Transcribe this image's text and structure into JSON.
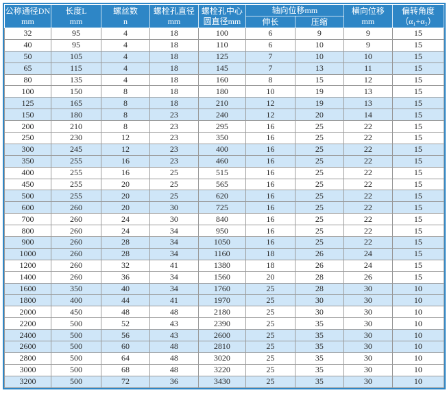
{
  "table": {
    "title_hint": "膨胀节/伸缩接头规格参数表",
    "header": {
      "dn": {
        "l1": "公称通径DN",
        "l2": "mm"
      },
      "length": {
        "l1": "长度L",
        "l2": "mm"
      },
      "screws": {
        "l1": "螺丝数",
        "l2": "n"
      },
      "hole": {
        "l1": "螺栓孔直径",
        "l2": "mm"
      },
      "circle": {
        "l1": "螺栓孔中心",
        "l2": "圆直径mm"
      },
      "axial": {
        "title": "轴向位移mm",
        "elong": "伸长",
        "compress": "压缩"
      },
      "lateral": {
        "l1": "横向位移",
        "l2": "mm"
      },
      "angle": {
        "l1": "偏转角度",
        "l2": "（α₁+α₂）"
      }
    },
    "rows": [
      [
        32,
        95,
        4,
        18,
        100,
        6,
        9,
        9,
        15
      ],
      [
        40,
        95,
        4,
        18,
        110,
        6,
        10,
        9,
        15
      ],
      [
        50,
        105,
        4,
        18,
        125,
        7,
        10,
        10,
        15
      ],
      [
        65,
        115,
        4,
        18,
        145,
        7,
        13,
        11,
        15
      ],
      [
        80,
        135,
        4,
        18,
        160,
        8,
        15,
        12,
        15
      ],
      [
        100,
        150,
        8,
        18,
        180,
        10,
        19,
        13,
        15
      ],
      [
        125,
        165,
        8,
        18,
        210,
        12,
        19,
        13,
        15
      ],
      [
        150,
        180,
        8,
        23,
        240,
        12,
        20,
        14,
        15
      ],
      [
        200,
        210,
        8,
        23,
        295,
        16,
        25,
        22,
        15
      ],
      [
        250,
        230,
        12,
        23,
        350,
        16,
        25,
        22,
        15
      ],
      [
        300,
        245,
        12,
        23,
        400,
        16,
        25,
        22,
        15
      ],
      [
        350,
        255,
        16,
        23,
        460,
        16,
        25,
        22,
        15
      ],
      [
        400,
        255,
        16,
        25,
        515,
        16,
        25,
        22,
        15
      ],
      [
        450,
        255,
        20,
        25,
        565,
        16,
        25,
        22,
        15
      ],
      [
        500,
        255,
        20,
        25,
        620,
        16,
        25,
        22,
        15
      ],
      [
        600,
        260,
        20,
        30,
        725,
        16,
        25,
        22,
        15
      ],
      [
        700,
        260,
        24,
        30,
        840,
        16,
        25,
        22,
        15
      ],
      [
        800,
        260,
        24,
        34,
        950,
        16,
        25,
        22,
        15
      ],
      [
        900,
        260,
        28,
        34,
        1050,
        16,
        25,
        22,
        15
      ],
      [
        1000,
        260,
        28,
        34,
        1160,
        18,
        26,
        24,
        15
      ],
      [
        1200,
        260,
        32,
        41,
        1380,
        18,
        26,
        24,
        15
      ],
      [
        1400,
        260,
        36,
        34,
        1560,
        20,
        28,
        26,
        15
      ],
      [
        1600,
        350,
        40,
        34,
        1760,
        25,
        28,
        30,
        10
      ],
      [
        1800,
        400,
        44,
        41,
        1970,
        25,
        30,
        30,
        10
      ],
      [
        2000,
        450,
        48,
        48,
        2180,
        25,
        30,
        30,
        10
      ],
      [
        2200,
        500,
        52,
        43,
        2390,
        25,
        35,
        30,
        10
      ],
      [
        2400,
        500,
        56,
        43,
        2600,
        25,
        35,
        30,
        10
      ],
      [
        2600,
        500,
        60,
        48,
        2810,
        25,
        35,
        30,
        10
      ],
      [
        2800,
        500,
        64,
        48,
        3020,
        25,
        35,
        30,
        10
      ],
      [
        3000,
        500,
        68,
        48,
        3220,
        25,
        35,
        30,
        10
      ],
      [
        3200,
        500,
        72,
        36,
        3430,
        25,
        35,
        30,
        10
      ]
    ]
  },
  "colors": {
    "header_bg": "#2e86c6",
    "header_text": "#ffffff",
    "row_alt": "#cfe6f8",
    "row_bg": "#ffffff",
    "grid": "#999999",
    "body_text": "#2b2b2b",
    "page_bg": "#ffffff"
  }
}
